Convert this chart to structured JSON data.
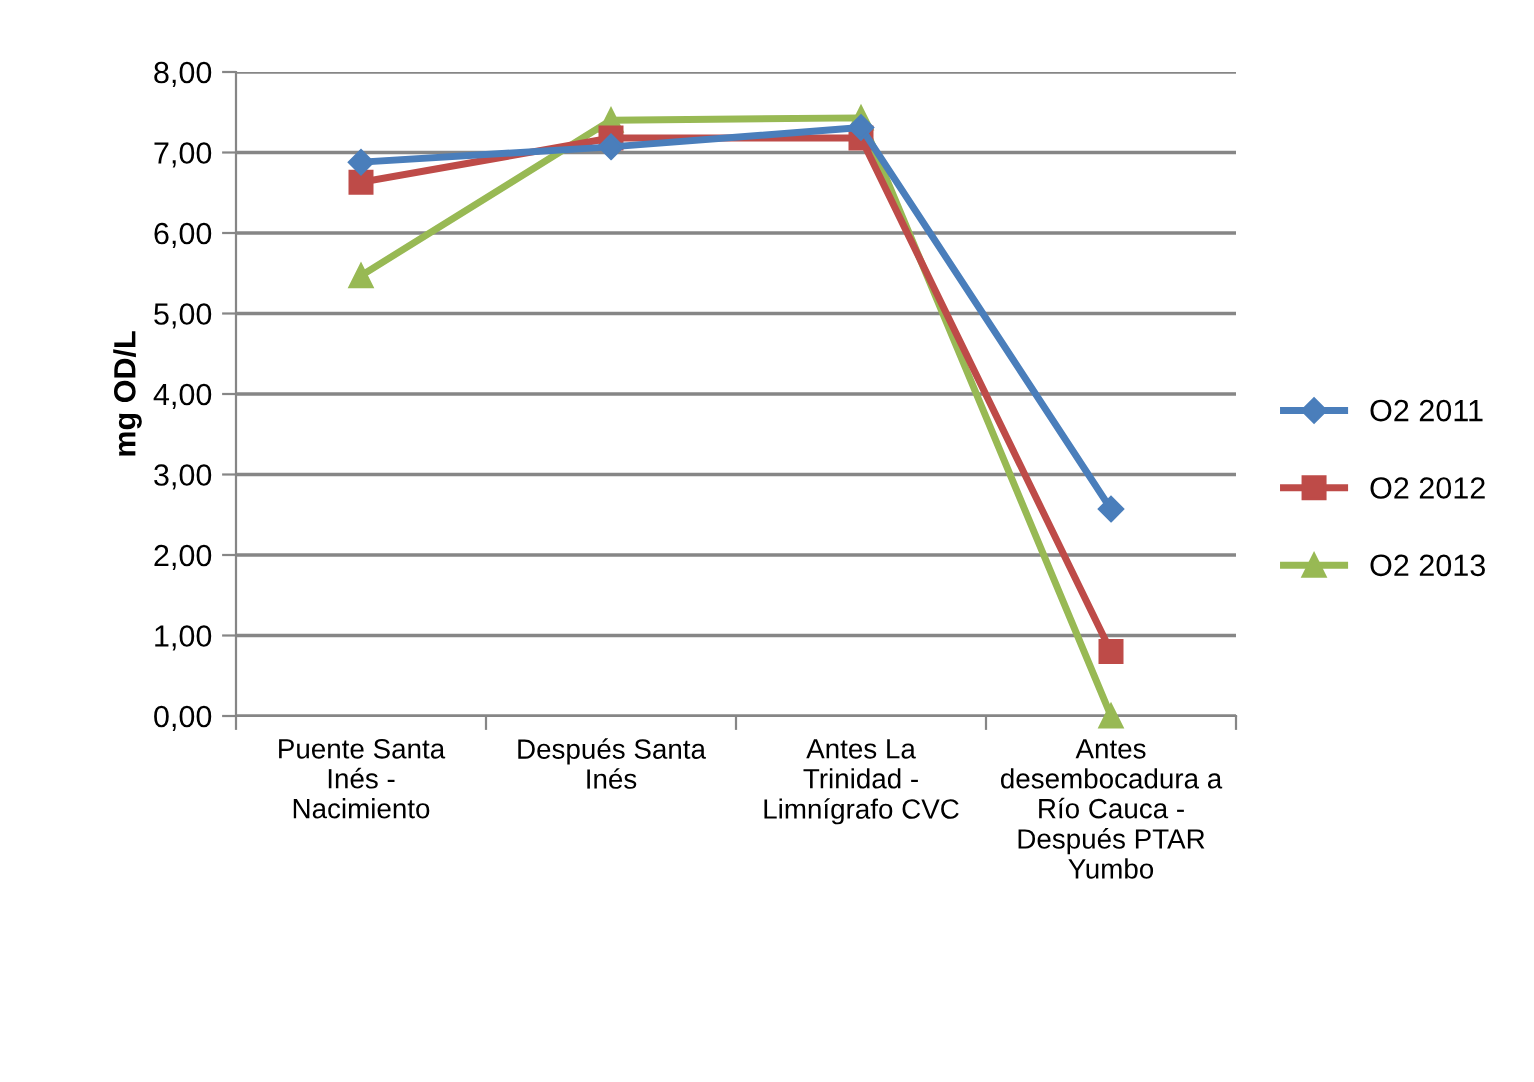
{
  "chart_data": {
    "type": "line",
    "ylabel": "mg OD/L",
    "categories": [
      "Puente Santa Inés - Nacimiento",
      "Después Santa Inés",
      "Antes La Trinidad - Limnígrafo CVC",
      "Antes desembocadura a Río Cauca - Después PTAR Yumbo"
    ],
    "series": [
      {
        "name": "O2 2011",
        "color": "#4a7ebb",
        "marker": "diamond",
        "values": [
          6.88,
          7.07,
          7.31,
          2.57
        ]
      },
      {
        "name": "O2 2012",
        "color": "#be4b48",
        "marker": "square",
        "values": [
          6.63,
          7.18,
          7.18,
          0.8
        ]
      },
      {
        "name": "O2 2013",
        "color": "#98b954",
        "marker": "triangle",
        "values": [
          5.47,
          7.4,
          7.43,
          0.0
        ]
      }
    ],
    "ylim": [
      0,
      8
    ],
    "yticks": [
      {
        "value": 0,
        "label": "0,00"
      },
      {
        "value": 1,
        "label": "1,00"
      },
      {
        "value": 2,
        "label": "2,00"
      },
      {
        "value": 3,
        "label": "3,00"
      },
      {
        "value": 4,
        "label": "4,00"
      },
      {
        "value": 5,
        "label": "5,00"
      },
      {
        "value": 6,
        "label": "6,00"
      },
      {
        "value": 7,
        "label": "7,00"
      },
      {
        "value": 8,
        "label": "8,00"
      }
    ],
    "grid": "y",
    "legend": "right",
    "line_style": "solid"
  }
}
